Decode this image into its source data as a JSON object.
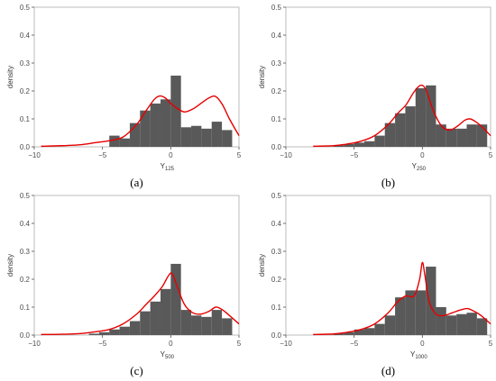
{
  "chart_data": [
    {
      "type": "histogram",
      "panel_label": "(a)",
      "xlabel_base": "Y",
      "xlabel_sub": "125",
      "ylabel": "density",
      "xlim": [
        -10,
        5
      ],
      "ylim": [
        0,
        0.5
      ],
      "x_ticks": [
        -10,
        -5,
        0,
        5
      ],
      "x_tick_labels": [
        "−10",
        "−5",
        "0",
        "5"
      ],
      "y_ticks": [
        0,
        0.1,
        0.2,
        0.3,
        0.4,
        0.5
      ],
      "y_tick_labels": [
        "0.0",
        "0.1",
        "0.2",
        "0.3",
        "0.4",
        "0.5"
      ],
      "bars": [
        {
          "x0": -4.5,
          "x1": -3.75,
          "y": 0.04
        },
        {
          "x0": -3.75,
          "x1": -3.0,
          "y": 0.03
        },
        {
          "x0": -3.0,
          "x1": -2.25,
          "y": 0.085
        },
        {
          "x0": -2.25,
          "x1": -1.5,
          "y": 0.13
        },
        {
          "x0": -1.5,
          "x1": -0.75,
          "y": 0.155
        },
        {
          "x0": -0.75,
          "x1": 0.0,
          "y": 0.17
        },
        {
          "x0": 0.0,
          "x1": 0.75,
          "y": 0.255
        },
        {
          "x0": 0.75,
          "x1": 1.5,
          "y": 0.07
        },
        {
          "x0": 1.5,
          "x1": 2.25,
          "y": 0.075
        },
        {
          "x0": 2.25,
          "x1": 3.0,
          "y": 0.065
        },
        {
          "x0": 3.0,
          "x1": 3.75,
          "y": 0.09
        },
        {
          "x0": 3.75,
          "x1": 4.5,
          "y": 0.06
        }
      ],
      "density_curve": {
        "x": [
          -9.5,
          -8.0,
          -6.5,
          -5.5,
          -4.5,
          -3.5,
          -2.5,
          -1.8,
          -1.2,
          -0.8,
          -0.4,
          0.0,
          0.4,
          1.0,
          1.6,
          2.2,
          2.8,
          3.3,
          3.8,
          4.3,
          5.0
        ],
        "y": [
          0.002,
          0.004,
          0.008,
          0.015,
          0.022,
          0.035,
          0.08,
          0.13,
          0.17,
          0.182,
          0.175,
          0.155,
          0.14,
          0.125,
          0.135,
          0.155,
          0.175,
          0.18,
          0.15,
          0.1,
          0.04
        ]
      },
      "colors": {
        "bar": "#595959",
        "curve": "#e60000"
      }
    },
    {
      "type": "histogram",
      "panel_label": "(b)",
      "xlabel_base": "Y",
      "xlabel_sub": "250",
      "ylabel": "density",
      "xlim": [
        -10,
        5
      ],
      "ylim": [
        0,
        0.5
      ],
      "x_ticks": [
        -10,
        -5,
        0,
        5
      ],
      "x_tick_labels": [
        "−10",
        "−5",
        "0",
        "5"
      ],
      "y_ticks": [
        0,
        0.1,
        0.2,
        0.3,
        0.4,
        0.5
      ],
      "y_tick_labels": [
        "0.0",
        "0.1",
        "0.2",
        "0.3",
        "0.4",
        "0.5"
      ],
      "bars": [
        {
          "x0": -6.5,
          "x1": -5.75,
          "y": 0.005
        },
        {
          "x0": -5.75,
          "x1": -5.0,
          "y": 0.01
        },
        {
          "x0": -5.0,
          "x1": -4.25,
          "y": 0.015
        },
        {
          "x0": -4.25,
          "x1": -3.5,
          "y": 0.02
        },
        {
          "x0": -3.5,
          "x1": -2.75,
          "y": 0.04
        },
        {
          "x0": -2.75,
          "x1": -2.0,
          "y": 0.085
        },
        {
          "x0": -2.0,
          "x1": -1.25,
          "y": 0.12
        },
        {
          "x0": -1.25,
          "x1": -0.5,
          "y": 0.145
        },
        {
          "x0": -0.5,
          "x1": 0.25,
          "y": 0.21
        },
        {
          "x0": 0.25,
          "x1": 1.0,
          "y": 0.22
        },
        {
          "x0": 1.0,
          "x1": 1.75,
          "y": 0.08
        },
        {
          "x0": 1.75,
          "x1": 2.5,
          "y": 0.065
        },
        {
          "x0": 2.5,
          "x1": 3.25,
          "y": 0.065
        },
        {
          "x0": 3.25,
          "x1": 4.0,
          "y": 0.08
        },
        {
          "x0": 4.0,
          "x1": 4.75,
          "y": 0.08
        }
      ],
      "density_curve": {
        "x": [
          -8.0,
          -6.5,
          -5.5,
          -4.5,
          -3.5,
          -2.5,
          -1.8,
          -1.2,
          -0.7,
          -0.3,
          0.0,
          0.3,
          0.8,
          1.4,
          2.0,
          2.6,
          3.1,
          3.5,
          3.9,
          4.4,
          5.0
        ],
        "y": [
          0.002,
          0.004,
          0.01,
          0.02,
          0.04,
          0.08,
          0.12,
          0.15,
          0.19,
          0.215,
          0.22,
          0.2,
          0.13,
          0.075,
          0.06,
          0.075,
          0.095,
          0.1,
          0.09,
          0.07,
          0.04
        ]
      },
      "colors": {
        "bar": "#595959",
        "curve": "#e60000"
      }
    },
    {
      "type": "histogram",
      "panel_label": "(c)",
      "xlabel_base": "Y",
      "xlabel_sub": "500",
      "ylabel": "density",
      "xlim": [
        -10,
        5
      ],
      "ylim": [
        0,
        0.5
      ],
      "x_ticks": [
        -10,
        -5,
        0,
        5
      ],
      "x_tick_labels": [
        "−10",
        "−5",
        "0",
        "5"
      ],
      "y_ticks": [
        0,
        0.1,
        0.2,
        0.3,
        0.4,
        0.5
      ],
      "y_tick_labels": [
        "0.0",
        "0.1",
        "0.2",
        "0.3",
        "0.4",
        "0.5"
      ],
      "bars": [
        {
          "x0": -6.0,
          "x1": -5.25,
          "y": 0.005
        },
        {
          "x0": -5.25,
          "x1": -4.5,
          "y": 0.01
        },
        {
          "x0": -4.5,
          "x1": -3.75,
          "y": 0.02
        },
        {
          "x0": -3.75,
          "x1": -3.0,
          "y": 0.03
        },
        {
          "x0": -3.0,
          "x1": -2.25,
          "y": 0.05
        },
        {
          "x0": -2.25,
          "x1": -1.5,
          "y": 0.085
        },
        {
          "x0": -1.5,
          "x1": -0.75,
          "y": 0.12
        },
        {
          "x0": -0.75,
          "x1": 0.0,
          "y": 0.165
        },
        {
          "x0": 0.0,
          "x1": 0.75,
          "y": 0.255
        },
        {
          "x0": 0.75,
          "x1": 1.5,
          "y": 0.09
        },
        {
          "x0": 1.5,
          "x1": 2.25,
          "y": 0.07
        },
        {
          "x0": 2.25,
          "x1": 3.0,
          "y": 0.065
        },
        {
          "x0": 3.0,
          "x1": 3.75,
          "y": 0.09
        },
        {
          "x0": 3.75,
          "x1": 4.5,
          "y": 0.06
        }
      ],
      "density_curve": {
        "x": [
          -9.5,
          -8.0,
          -6.5,
          -5.5,
          -4.5,
          -3.5,
          -2.5,
          -1.8,
          -1.2,
          -0.6,
          -0.2,
          0.1,
          0.5,
          1.0,
          1.6,
          2.2,
          2.8,
          3.3,
          3.8,
          4.3,
          5.0
        ],
        "y": [
          0.002,
          0.003,
          0.006,
          0.012,
          0.02,
          0.04,
          0.075,
          0.11,
          0.14,
          0.175,
          0.21,
          0.22,
          0.17,
          0.11,
          0.08,
          0.075,
          0.085,
          0.1,
          0.09,
          0.07,
          0.04
        ]
      },
      "colors": {
        "bar": "#595959",
        "curve": "#e60000"
      }
    },
    {
      "type": "histogram",
      "panel_label": "(d)",
      "xlabel_base": "Y",
      "xlabel_sub": "1000",
      "ylabel": "density",
      "xlim": [
        -10,
        5
      ],
      "ylim": [
        0,
        0.5
      ],
      "x_ticks": [
        -10,
        -5,
        0,
        5
      ],
      "x_tick_labels": [
        "−10",
        "−5",
        "0",
        "5"
      ],
      "y_ticks": [
        0,
        0.1,
        0.2,
        0.3,
        0.4,
        0.5
      ],
      "y_tick_labels": [
        "0.0",
        "0.1",
        "0.2",
        "0.3",
        "0.4",
        "0.5"
      ],
      "bars": [
        {
          "x0": -6.5,
          "x1": -5.75,
          "y": 0.005
        },
        {
          "x0": -5.75,
          "x1": -5.0,
          "y": 0.01
        },
        {
          "x0": -5.0,
          "x1": -4.25,
          "y": 0.02
        },
        {
          "x0": -4.25,
          "x1": -3.5,
          "y": 0.025
        },
        {
          "x0": -3.5,
          "x1": -2.75,
          "y": 0.04
        },
        {
          "x0": -2.75,
          "x1": -2.0,
          "y": 0.07
        },
        {
          "x0": -2.0,
          "x1": -1.25,
          "y": 0.135
        },
        {
          "x0": -1.25,
          "x1": -0.5,
          "y": 0.16
        },
        {
          "x0": -0.5,
          "x1": 0.25,
          "y": 0.16
        },
        {
          "x0": 0.25,
          "x1": 1.0,
          "y": 0.245
        },
        {
          "x0": 1.0,
          "x1": 1.75,
          "y": 0.1
        },
        {
          "x0": 1.75,
          "x1": 2.5,
          "y": 0.07
        },
        {
          "x0": 2.5,
          "x1": 3.25,
          "y": 0.075
        },
        {
          "x0": 3.25,
          "x1": 4.0,
          "y": 0.08
        },
        {
          "x0": 4.0,
          "x1": 4.75,
          "y": 0.06
        }
      ],
      "density_curve": {
        "x": [
          -8.0,
          -6.5,
          -5.5,
          -4.5,
          -3.5,
          -2.5,
          -1.8,
          -1.2,
          -0.6,
          -0.2,
          0.0,
          0.2,
          0.5,
          1.0,
          1.6,
          2.2,
          2.8,
          3.3,
          3.8,
          4.3,
          5.0
        ],
        "y": [
          0.002,
          0.004,
          0.01,
          0.02,
          0.04,
          0.08,
          0.12,
          0.14,
          0.14,
          0.2,
          0.26,
          0.21,
          0.12,
          0.075,
          0.07,
          0.08,
          0.09,
          0.095,
          0.085,
          0.07,
          0.04
        ]
      },
      "colors": {
        "bar": "#595959",
        "curve": "#e60000"
      }
    }
  ]
}
